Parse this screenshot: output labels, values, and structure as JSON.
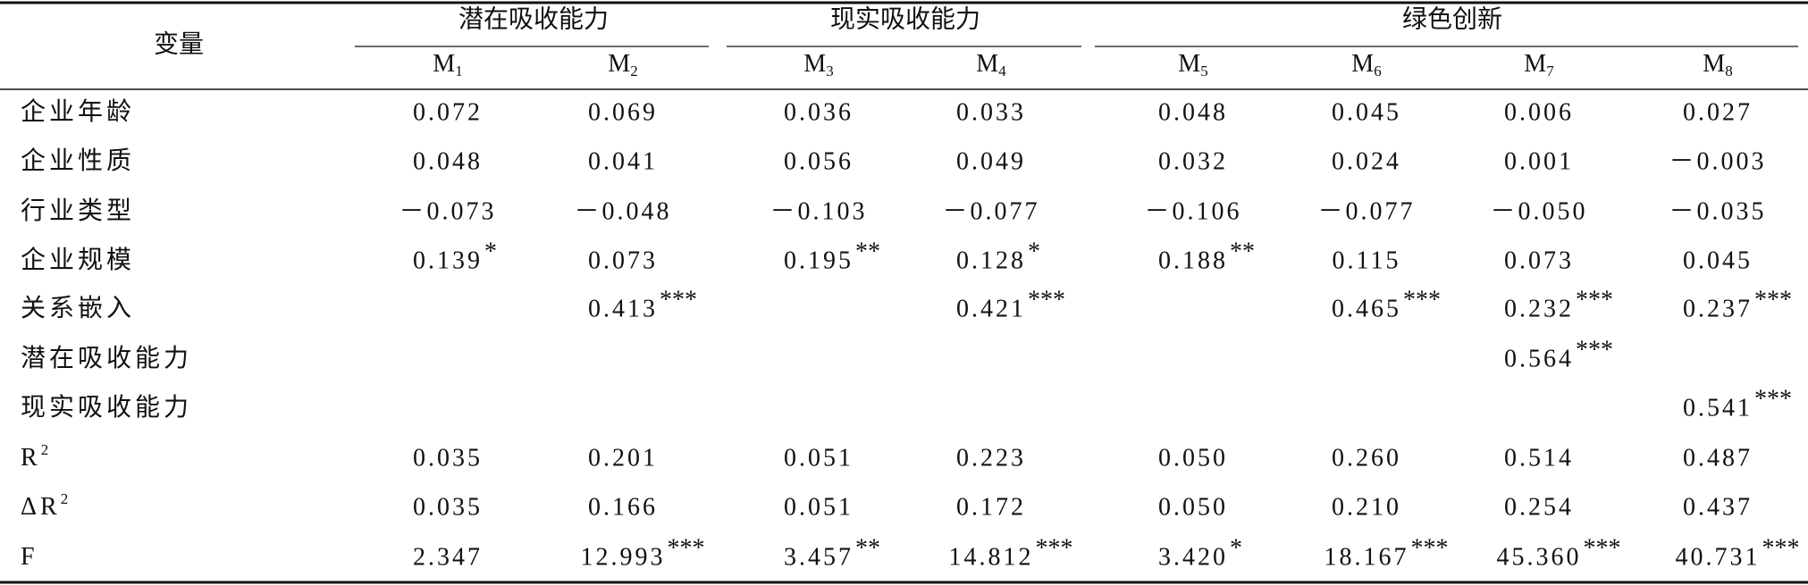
{
  "header": {
    "variable_label": "变量",
    "groups": [
      {
        "label": "潜在吸收能力",
        "models": [
          {
            "base": "M",
            "sub": "1"
          },
          {
            "base": "M",
            "sub": "2"
          }
        ]
      },
      {
        "label": "现实吸收能力",
        "models": [
          {
            "base": "M",
            "sub": "3"
          },
          {
            "base": "M",
            "sub": "4"
          }
        ]
      },
      {
        "label": "绿色创新",
        "models": [
          {
            "base": "M",
            "sub": "5"
          },
          {
            "base": "M",
            "sub": "6"
          },
          {
            "base": "M",
            "sub": "7"
          },
          {
            "base": "M",
            "sub": "8"
          }
        ]
      }
    ]
  },
  "rows": [
    {
      "label": "企业年龄",
      "cells": [
        {
          "value": "0.072"
        },
        {
          "value": "0.069"
        },
        {
          "value": "0.036"
        },
        {
          "value": "0.033"
        },
        {
          "value": "0.048"
        },
        {
          "value": "0.045"
        },
        {
          "value": "0.006"
        },
        {
          "value": "0.027"
        }
      ]
    },
    {
      "label": "企业性质",
      "cells": [
        {
          "value": "0.048"
        },
        {
          "value": "0.041"
        },
        {
          "value": "0.056"
        },
        {
          "value": "0.049"
        },
        {
          "value": "0.032"
        },
        {
          "value": "0.024"
        },
        {
          "value": "0.001"
        },
        {
          "value": "－0.003"
        }
      ]
    },
    {
      "label": "行业类型",
      "cells": [
        {
          "value": "－0.073"
        },
        {
          "value": "－0.048"
        },
        {
          "value": "－0.103"
        },
        {
          "value": "－0.077"
        },
        {
          "value": "－0.106"
        },
        {
          "value": "－0.077"
        },
        {
          "value": "－0.050"
        },
        {
          "value": "－0.035"
        }
      ]
    },
    {
      "label": "企业规模",
      "cells": [
        {
          "value": "0.139",
          "stars": "*"
        },
        {
          "value": "0.073"
        },
        {
          "value": "0.195",
          "stars": "**"
        },
        {
          "value": "0.128",
          "stars": "*"
        },
        {
          "value": "0.188",
          "stars": "**"
        },
        {
          "value": "0.115"
        },
        {
          "value": "0.073"
        },
        {
          "value": "0.045"
        }
      ]
    },
    {
      "label": "关系嵌入",
      "cells": [
        null,
        {
          "value": "0.413",
          "stars": "***"
        },
        null,
        {
          "value": "0.421",
          "stars": "***"
        },
        null,
        {
          "value": "0.465",
          "stars": "***"
        },
        {
          "value": "0.232",
          "stars": "***"
        },
        {
          "value": "0.237",
          "stars": "***"
        }
      ]
    },
    {
      "label": "潜在吸收能力",
      "cells": [
        null,
        null,
        null,
        null,
        null,
        null,
        {
          "value": "0.564",
          "stars": "***"
        },
        null
      ]
    },
    {
      "label": "现实吸收能力",
      "cells": [
        null,
        null,
        null,
        null,
        null,
        null,
        null,
        {
          "value": "0.541",
          "stars": "***"
        }
      ]
    },
    {
      "label": "R",
      "label_sup": "2",
      "cells": [
        {
          "value": "0.035"
        },
        {
          "value": "0.201"
        },
        {
          "value": "0.051"
        },
        {
          "value": "0.223"
        },
        {
          "value": "0.050"
        },
        {
          "value": "0.260"
        },
        {
          "value": "0.514"
        },
        {
          "value": "0.487"
        }
      ]
    },
    {
      "label": "ΔR",
      "label_sup": "2",
      "cells": [
        {
          "value": "0.035"
        },
        {
          "value": "0.166"
        },
        {
          "value": "0.051"
        },
        {
          "value": "0.172"
        },
        {
          "value": "0.050"
        },
        {
          "value": "0.210"
        },
        {
          "value": "0.254"
        },
        {
          "value": "0.437"
        }
      ]
    },
    {
      "label": "F",
      "cells": [
        {
          "value": "2.347"
        },
        {
          "value": "12.993",
          "stars": "***"
        },
        {
          "value": "3.457",
          "stars": "**"
        },
        {
          "value": "14.812",
          "stars": "***"
        },
        {
          "value": "3.420",
          "stars": "*"
        },
        {
          "value": "18.167",
          "stars": "***"
        },
        {
          "value": "45.360",
          "stars": "***"
        },
        {
          "value": "40.731",
          "stars": "***"
        }
      ]
    }
  ]
}
